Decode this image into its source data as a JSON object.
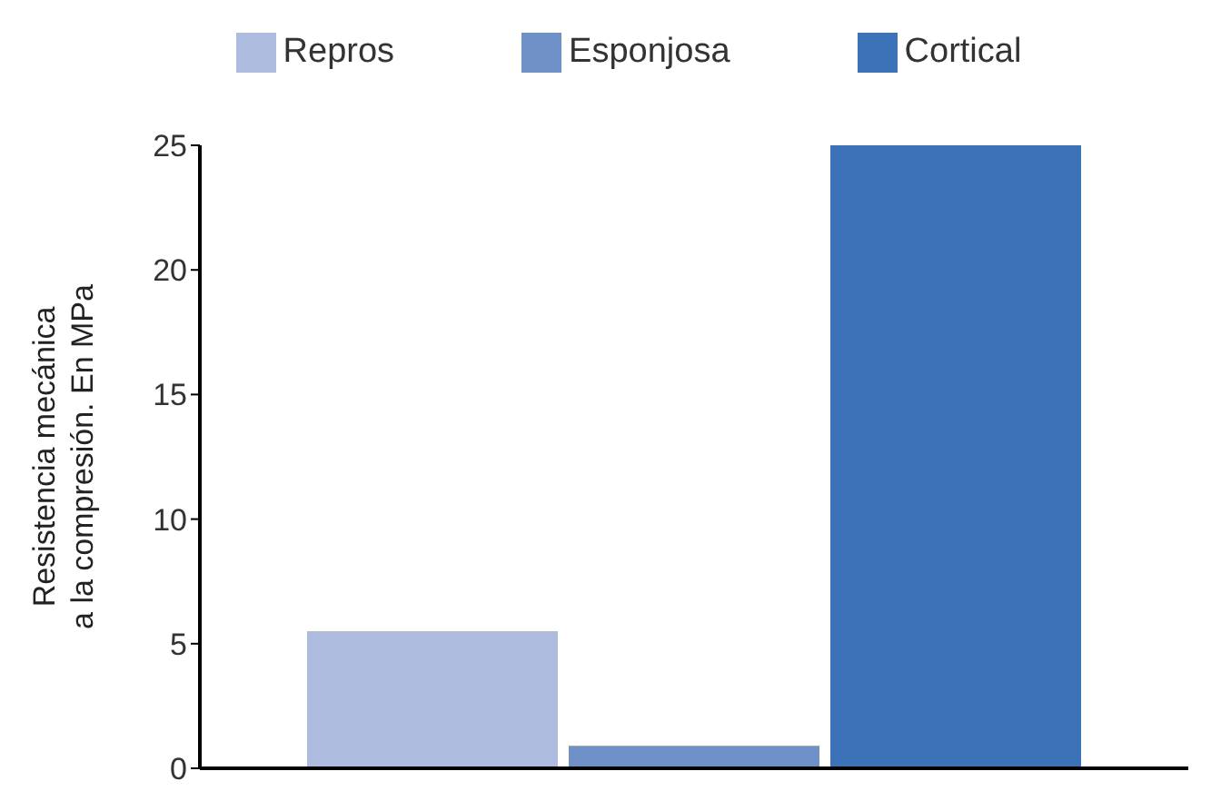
{
  "chart_data": {
    "type": "bar",
    "ylabel": "Resistencia mecánica a la compresión. En MPa",
    "categories": [
      null
    ],
    "series": [
      {
        "name": "Repros",
        "color": "#aebcdf",
        "values": [
          5.5
        ]
      },
      {
        "name": "Esponjosa",
        "color": "#6f91c8",
        "values": [
          0.9
        ]
      },
      {
        "name": "Cortical",
        "color": "#3b72b8",
        "values": [
          25
        ]
      }
    ],
    "ylim": [
      0,
      25
    ],
    "yticks": [
      0,
      5,
      10,
      15,
      20,
      25
    ],
    "legend": "top",
    "grid": false
  }
}
